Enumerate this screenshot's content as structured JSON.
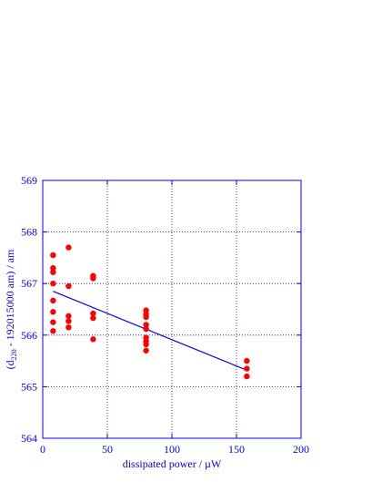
{
  "chart_data": {
    "type": "scatter",
    "title": "",
    "xlabel": "dissipated power / µW",
    "ylabel": {
      "prefix": "(d",
      "subscript": "220",
      "suffix": " - 192015000 am) / am"
    },
    "xlim": [
      0,
      200
    ],
    "ylim": [
      564,
      569
    ],
    "x_ticks": [
      0,
      50,
      100,
      150,
      200
    ],
    "y_ticks": [
      564,
      565,
      566,
      567,
      568,
      569
    ],
    "grid": true,
    "legend": "none",
    "colors": {
      "axis": "#0000ff",
      "grid": "#0000ff",
      "points": "#ff0000",
      "fit_line": "#0000ff"
    },
    "series": [
      {
        "kind": "points",
        "points": [
          {
            "x": 8,
            "y": 567.55
          },
          {
            "x": 8,
            "y": 567.3
          },
          {
            "x": 8,
            "y": 567.22
          },
          {
            "x": 8,
            "y": 567.0
          },
          {
            "x": 8,
            "y": 566.67
          },
          {
            "x": 8,
            "y": 566.45
          },
          {
            "x": 8,
            "y": 566.25
          },
          {
            "x": 8,
            "y": 566.08
          },
          {
            "x": 20,
            "y": 567.7
          },
          {
            "x": 20,
            "y": 566.95
          },
          {
            "x": 20,
            "y": 566.37
          },
          {
            "x": 20,
            "y": 566.27
          },
          {
            "x": 20,
            "y": 566.15
          },
          {
            "x": 39,
            "y": 567.15
          },
          {
            "x": 39,
            "y": 567.1
          },
          {
            "x": 39,
            "y": 566.42
          },
          {
            "x": 39,
            "y": 566.33
          },
          {
            "x": 39,
            "y": 565.92
          },
          {
            "x": 80,
            "y": 566.48
          },
          {
            "x": 80,
            "y": 566.4
          },
          {
            "x": 80,
            "y": 566.35
          },
          {
            "x": 80,
            "y": 566.2
          },
          {
            "x": 80,
            "y": 566.12
          },
          {
            "x": 80,
            "y": 565.95
          },
          {
            "x": 80,
            "y": 565.88
          },
          {
            "x": 80,
            "y": 565.82
          },
          {
            "x": 80,
            "y": 565.7
          },
          {
            "x": 158,
            "y": 565.5
          },
          {
            "x": 158,
            "y": 565.35
          },
          {
            "x": 158,
            "y": 565.2
          }
        ]
      },
      {
        "kind": "fit_line",
        "points": [
          {
            "x": 8,
            "y": 566.85
          },
          {
            "x": 158,
            "y": 565.32
          }
        ]
      }
    ]
  }
}
